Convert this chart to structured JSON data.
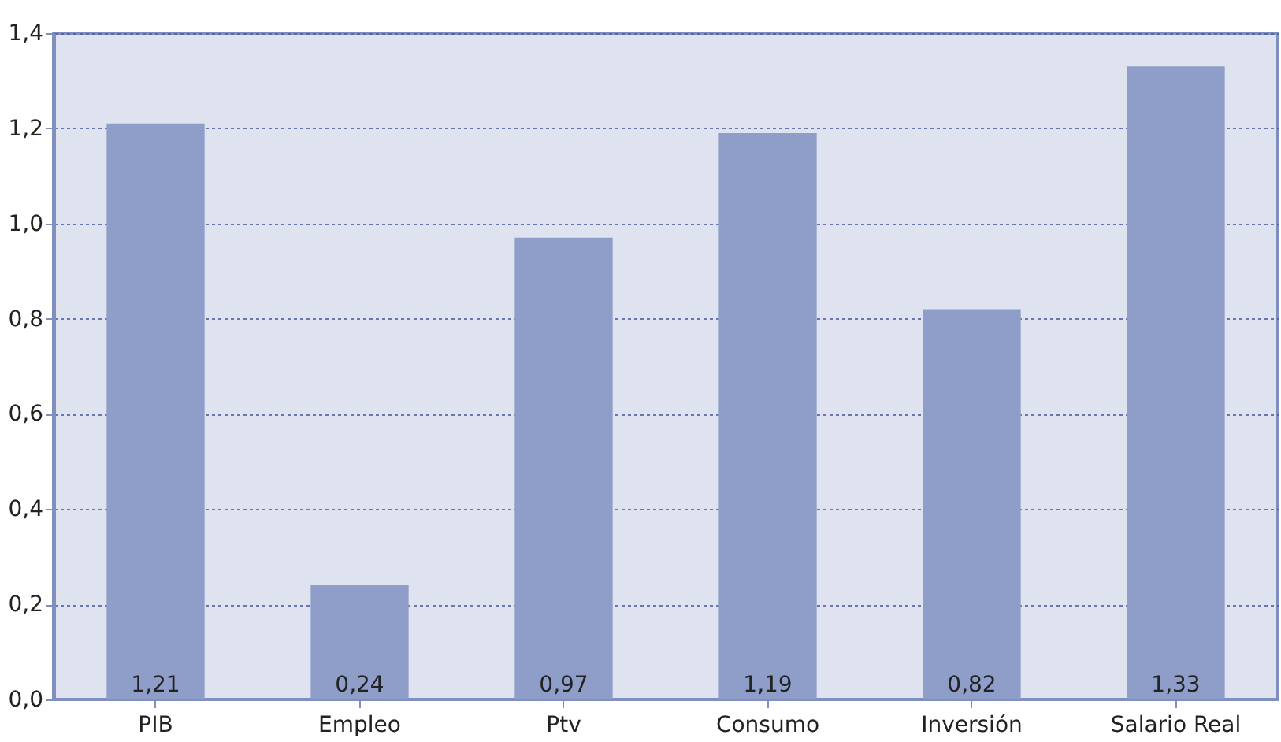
{
  "chart_data": {
    "type": "bar",
    "categories": [
      "PIB",
      "Empleo",
      "Ptv",
      "Consumo",
      "Inversión",
      "Salario Real"
    ],
    "values": [
      1.21,
      0.24,
      0.97,
      1.19,
      0.82,
      1.33
    ],
    "color": "#8f9ec9",
    "value_labels": [
      "1,21",
      "0,24",
      "0,97",
      "1,19",
      "0,82",
      "1,33"
    ],
    "ylim": [
      0,
      1.4
    ],
    "yticks": [
      {
        "value": 0,
        "label": "0,0"
      },
      {
        "value": 0.2,
        "label": "0,2"
      },
      {
        "value": 0.4,
        "label": "0,4"
      },
      {
        "value": 0.6,
        "label": "0,6"
      },
      {
        "value": 0.8,
        "label": "0,8"
      },
      {
        "value": 1.0,
        "label": "1,0"
      },
      {
        "value": 1.2,
        "label": "1,2"
      },
      {
        "value": 1.4,
        "label": "1,4"
      }
    ],
    "grid": "y"
  }
}
